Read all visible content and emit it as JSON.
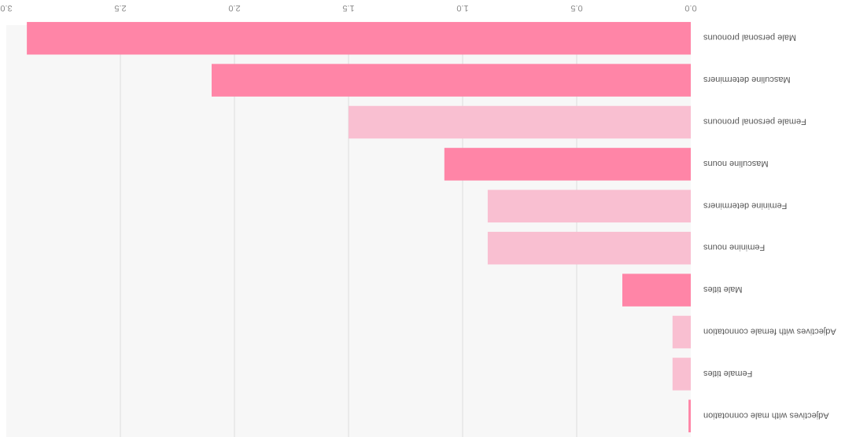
{
  "chart_data": {
    "type": "bar",
    "orientation": "horizontal",
    "rendering": "rotated-180",
    "categories": [
      "Adjectives with male connotation",
      "Female titles",
      "Adjectives with female connotation",
      "Male titles",
      "Feminine nouns",
      "Feminine determiners",
      "Masculine nouns",
      "Female personal pronouns",
      "Masculine determiners",
      "Male personal pronouns"
    ],
    "values": [
      0.01,
      0.08,
      0.08,
      0.3,
      0.89,
      0.89,
      1.08,
      1.5,
      2.1,
      2.91
    ],
    "bar_colors": [
      "#ff85a7",
      "#f9bfd1",
      "#f9bfd1",
      "#ff85a7",
      "#f9bfd1",
      "#f9bfd1",
      "#ff85a7",
      "#f9bfd1",
      "#ff85a7",
      "#ff85a7"
    ],
    "xlim": [
      0,
      3.0
    ],
    "xticks": [
      "0.0",
      "0.5",
      "1.0",
      "1.5",
      "2.0",
      "2.5",
      "3.0"
    ],
    "xlabel": "",
    "ylabel": "",
    "title": "",
    "grid": true,
    "legend": "none"
  },
  "colors": {
    "plot_background": "#f7f7f7",
    "gridline": "#dcdcdc",
    "male_bar": "#ff85a7",
    "female_bar": "#f9bfd1"
  }
}
